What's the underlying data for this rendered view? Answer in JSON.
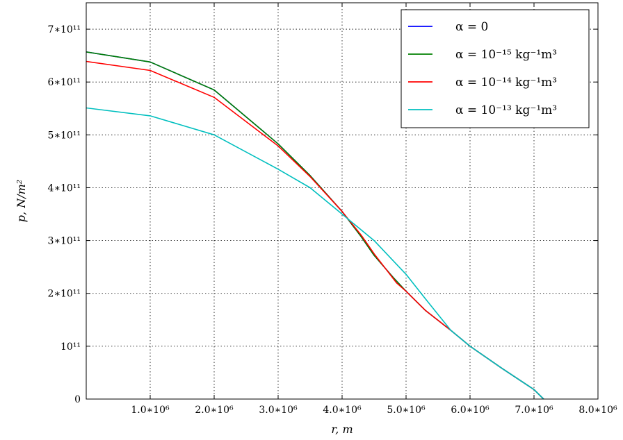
{
  "chart_data": {
    "type": "line",
    "title": "",
    "xlabel": "r, m",
    "ylabel": "p, N/m²",
    "xlim": [
      0,
      8000000
    ],
    "ylim": [
      0,
      750000000000
    ],
    "grid": true,
    "legend_position": "top-right",
    "x_ticks": [
      {
        "value": 1000000,
        "label": "1.0∗10⁶"
      },
      {
        "value": 2000000,
        "label": "2.0∗10⁶"
      },
      {
        "value": 3000000,
        "label": "3.0∗10⁶"
      },
      {
        "value": 4000000,
        "label": "4.0∗10⁶"
      },
      {
        "value": 5000000,
        "label": "5.0∗10⁶"
      },
      {
        "value": 6000000,
        "label": "6.0∗10⁶"
      },
      {
        "value": 7000000,
        "label": "7.0∗10⁶"
      },
      {
        "value": 8000000,
        "label": "8.0∗10⁶"
      }
    ],
    "y_ticks": [
      {
        "value": 0,
        "label": "0"
      },
      {
        "value": 100000000000,
        "label": "10¹¹"
      },
      {
        "value": 200000000000,
        "label": "2∗10¹¹"
      },
      {
        "value": 300000000000,
        "label": "3∗10¹¹"
      },
      {
        "value": 400000000000,
        "label": "4∗10¹¹"
      },
      {
        "value": 500000000000,
        "label": "5∗10¹¹"
      },
      {
        "value": 600000000000,
        "label": "6∗10¹¹"
      },
      {
        "value": 700000000000,
        "label": "7∗10¹¹"
      }
    ],
    "series": [
      {
        "name": "α = 0",
        "color": "#0000ff",
        "x": [
          0,
          1000000,
          2000000,
          3000000,
          3500000,
          4000000,
          4300000,
          4500000,
          4800000,
          5000000,
          5300000,
          5700000,
          6000000,
          6500000,
          7000000,
          7150000
        ],
        "y": [
          657000000000,
          638000000000,
          585000000000,
          483000000000,
          423000000000,
          355000000000,
          307000000000,
          272000000000,
          230000000000,
          204000000000,
          168000000000,
          130000000000,
          100000000000,
          58000000000,
          18000000000,
          0
        ]
      },
      {
        "name": "α = 10⁻¹⁵ kg⁻¹m³",
        "color": "#008000",
        "x": [
          0,
          1000000,
          2000000,
          3000000,
          3500000,
          4000000,
          4300000,
          4500000,
          4800000,
          5000000,
          5300000,
          5700000,
          6000000,
          6500000,
          7000000,
          7150000
        ],
        "y": [
          657000000000,
          638000000000,
          585000000000,
          483000000000,
          423000000000,
          355000000000,
          307000000000,
          272000000000,
          230000000000,
          204000000000,
          168000000000,
          130000000000,
          100000000000,
          58000000000,
          18000000000,
          0
        ]
      },
      {
        "name": "α = 10⁻¹⁴ kg⁻¹m³",
        "color": "#ff0000",
        "x": [
          0,
          1000000,
          2000000,
          3000000,
          3500000,
          4000000,
          4300000,
          4500000,
          4850000,
          5000000,
          5300000,
          5700000,
          6000000,
          6500000,
          7000000,
          7150000
        ],
        "y": [
          639000000000,
          622000000000,
          571000000000,
          479000000000,
          421000000000,
          355000000000,
          310000000000,
          275000000000,
          220000000000,
          204000000000,
          168000000000,
          130000000000,
          100000000000,
          58000000000,
          18000000000,
          0
        ]
      },
      {
        "name": "α = 10⁻¹³ kg⁻¹m³",
        "color": "#00bfbf",
        "x": [
          0,
          1000000,
          2000000,
          3000000,
          3500000,
          4000000,
          4300000,
          4500000,
          5000000,
          5300000,
          5700000,
          6000000,
          6500000,
          7000000,
          7150000
        ],
        "y": [
          551000000000,
          536000000000,
          500000000000,
          435000000000,
          400000000000,
          350000000000,
          320000000000,
          300000000000,
          236000000000,
          190000000000,
          130000000000,
          100000000000,
          58000000000,
          18000000000,
          0
        ]
      }
    ]
  }
}
